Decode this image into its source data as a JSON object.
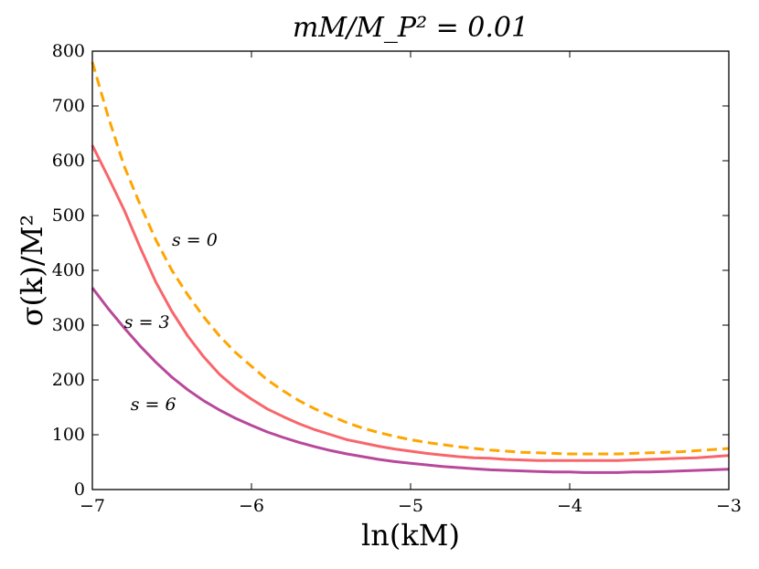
{
  "chart_data": {
    "type": "line",
    "title": "mM/M_P² = 0.01",
    "xlabel": "ln(kM)",
    "ylabel": "σ(k)/M²",
    "xlim": [
      -7,
      -3
    ],
    "ylim": [
      0,
      800
    ],
    "xticks": [
      -7,
      -6,
      -5,
      -4,
      -3
    ],
    "xtick_labels": [
      "−7",
      "−6",
      "−5",
      "−4",
      "−3"
    ],
    "yticks": [
      0,
      100,
      200,
      300,
      400,
      500,
      600,
      700,
      800
    ],
    "ytick_labels": [
      "0",
      "100",
      "200",
      "300",
      "400",
      "500",
      "600",
      "700",
      "800"
    ],
    "grid": false,
    "series": [
      {
        "name": "s = 0",
        "color": "#FFA500",
        "style": "dashed",
        "x": [
          -7.0,
          -6.9,
          -6.8,
          -6.7,
          -6.6,
          -6.5,
          -6.4,
          -6.3,
          -6.2,
          -6.1,
          -6.0,
          -5.9,
          -5.8,
          -5.7,
          -5.6,
          -5.5,
          -5.4,
          -5.3,
          -5.2,
          -5.1,
          -5.0,
          -4.9,
          -4.8,
          -4.7,
          -4.6,
          -4.5,
          -4.4,
          -4.3,
          -4.2,
          -4.1,
          -4.0,
          -3.9,
          -3.8,
          -3.7,
          -3.6,
          -3.5,
          -3.4,
          -3.3,
          -3.2,
          -3.1,
          -3.0
        ],
        "y": [
          780,
          680,
          590,
          520,
          455,
          400,
          355,
          315,
          280,
          250,
          225,
          200,
          180,
          162,
          147,
          134,
          122,
          112,
          104,
          97,
          91,
          86,
          82,
          78,
          75,
          72,
          70,
          68,
          67,
          66,
          65,
          65,
          65,
          65,
          66,
          67,
          68,
          69,
          71,
          73,
          75
        ]
      },
      {
        "name": "s = 3",
        "color": "#F8666B",
        "style": "solid",
        "x": [
          -7.0,
          -6.9,
          -6.8,
          -6.7,
          -6.6,
          -6.5,
          -6.4,
          -6.3,
          -6.2,
          -6.1,
          -6.0,
          -5.9,
          -5.8,
          -5.7,
          -5.6,
          -5.5,
          -5.4,
          -5.3,
          -5.2,
          -5.1,
          -5.0,
          -4.9,
          -4.8,
          -4.7,
          -4.6,
          -4.5,
          -4.4,
          -4.3,
          -4.2,
          -4.1,
          -4.0,
          -3.9,
          -3.8,
          -3.7,
          -3.6,
          -3.5,
          -3.4,
          -3.3,
          -3.2,
          -3.1,
          -3.0
        ],
        "y": [
          628,
          570,
          510,
          442,
          378,
          325,
          280,
          242,
          210,
          185,
          165,
          147,
          133,
          120,
          109,
          100,
          91,
          85,
          79,
          74,
          70,
          66,
          63,
          60,
          58,
          57,
          55,
          54,
          53,
          53,
          53,
          53,
          53,
          53,
          54,
          55,
          56,
          57,
          58,
          60,
          62
        ]
      },
      {
        "name": "s = 6",
        "color": "#B8489A",
        "style": "solid",
        "x": [
          -7.0,
          -6.9,
          -6.8,
          -6.7,
          -6.6,
          -6.5,
          -6.4,
          -6.3,
          -6.2,
          -6.1,
          -6.0,
          -5.9,
          -5.8,
          -5.7,
          -5.6,
          -5.5,
          -5.4,
          -5.3,
          -5.2,
          -5.1,
          -5.0,
          -4.9,
          -4.8,
          -4.7,
          -4.6,
          -4.5,
          -4.4,
          -4.3,
          -4.2,
          -4.1,
          -4.0,
          -3.9,
          -3.8,
          -3.7,
          -3.6,
          -3.5,
          -3.4,
          -3.3,
          -3.2,
          -3.1,
          -3.0
        ],
        "y": [
          368,
          330,
          295,
          262,
          232,
          205,
          182,
          162,
          145,
          130,
          117,
          105,
          95,
          86,
          78,
          71,
          65,
          60,
          55,
          51,
          48,
          45,
          42,
          40,
          38,
          36,
          35,
          34,
          33,
          32,
          32,
          31,
          31,
          31,
          32,
          32,
          33,
          34,
          35,
          36,
          37
        ]
      }
    ],
    "annotations": [
      {
        "text": "s = 0",
        "x": -6.5,
        "y": 455
      },
      {
        "text": "s = 3",
        "x": -6.8,
        "y": 305
      },
      {
        "text": "s = 6",
        "x": -6.76,
        "y": 155
      }
    ]
  }
}
